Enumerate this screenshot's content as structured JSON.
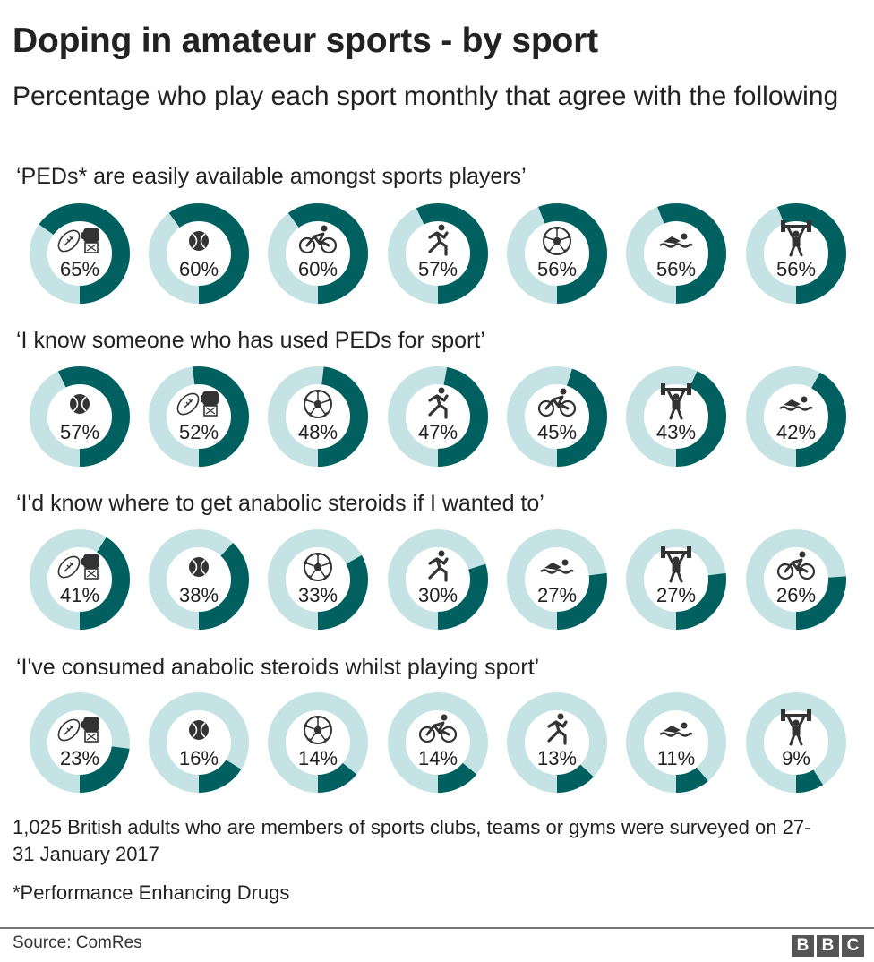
{
  "header": {
    "title": "Doping in amateur sports - by sport",
    "subtitle": "Percentage who play each sport monthly that agree with the following"
  },
  "colors": {
    "filled": "#005f5f",
    "track": "#c5e3e4",
    "icon": "#333333",
    "text": "#222222"
  },
  "chart_data": [
    {
      "type": "donut",
      "title": "‘PEDs* are easily available amongst sports players’",
      "items": [
        {
          "sport": "rugby-boxing-icon",
          "value": 65,
          "label": "65%"
        },
        {
          "sport": "tennis-icon",
          "value": 60,
          "label": "60%"
        },
        {
          "sport": "cycling-icon",
          "value": 60,
          "label": "60%"
        },
        {
          "sport": "running-icon",
          "value": 57,
          "label": "57%"
        },
        {
          "sport": "football-icon",
          "value": 56,
          "label": "56%"
        },
        {
          "sport": "swimming-icon",
          "value": 56,
          "label": "56%"
        },
        {
          "sport": "weightlifting-icon",
          "value": 56,
          "label": "56%"
        }
      ]
    },
    {
      "type": "donut",
      "title": "‘I know someone who has used PEDs for sport’",
      "items": [
        {
          "sport": "tennis-icon",
          "value": 57,
          "label": "57%"
        },
        {
          "sport": "rugby-boxing-icon",
          "value": 52,
          "label": "52%"
        },
        {
          "sport": "football-icon",
          "value": 48,
          "label": "48%"
        },
        {
          "sport": "running-icon",
          "value": 47,
          "label": "47%"
        },
        {
          "sport": "cycling-icon",
          "value": 45,
          "label": "45%"
        },
        {
          "sport": "weightlifting-icon",
          "value": 43,
          "label": "43%"
        },
        {
          "sport": "swimming-icon",
          "value": 42,
          "label": "42%"
        }
      ]
    },
    {
      "type": "donut",
      "title": "‘I'd know where to get anabolic steroids if I wanted to’",
      "items": [
        {
          "sport": "rugby-boxing-icon",
          "value": 41,
          "label": "41%"
        },
        {
          "sport": "tennis-icon",
          "value": 38,
          "label": "38%"
        },
        {
          "sport": "football-icon",
          "value": 33,
          "label": "33%"
        },
        {
          "sport": "running-icon",
          "value": 30,
          "label": "30%"
        },
        {
          "sport": "swimming-icon",
          "value": 27,
          "label": "27%"
        },
        {
          "sport": "weightlifting-icon",
          "value": 27,
          "label": "27%"
        },
        {
          "sport": "cycling-icon",
          "value": 26,
          "label": "26%"
        }
      ]
    },
    {
      "type": "donut",
      "title": "‘I've consumed anabolic steroids whilst playing sport’",
      "items": [
        {
          "sport": "rugby-boxing-icon",
          "value": 23,
          "label": "23%"
        },
        {
          "sport": "tennis-icon",
          "value": 16,
          "label": "16%"
        },
        {
          "sport": "football-icon",
          "value": 14,
          "label": "14%"
        },
        {
          "sport": "cycling-icon",
          "value": 14,
          "label": "14%"
        },
        {
          "sport": "running-icon",
          "value": 13,
          "label": "13%"
        },
        {
          "sport": "swimming-icon",
          "value": 11,
          "label": "11%"
        },
        {
          "sport": "weightlifting-icon",
          "value": 9,
          "label": "9%"
        }
      ]
    }
  ],
  "footer": {
    "note": "1,025 British adults who are members of sports clubs, teams or gyms were surveyed on 27-31 January 2017",
    "footnote": "*Performance Enhancing Drugs",
    "source": "Source: ComRes",
    "logo_letters": [
      "B",
      "B",
      "C"
    ]
  }
}
